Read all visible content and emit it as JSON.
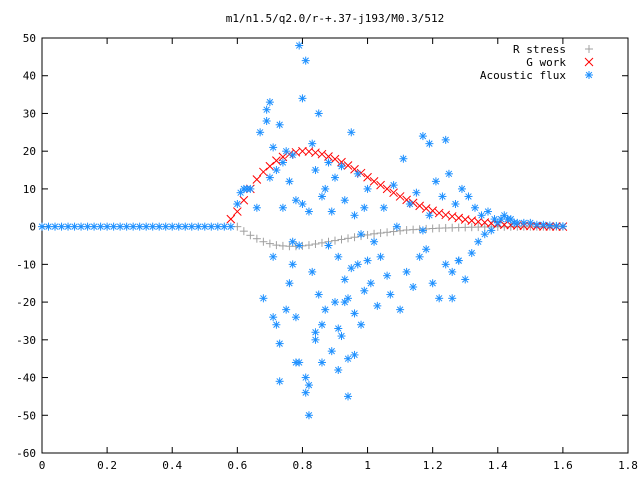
{
  "chart_data": {
    "type": "scatter",
    "title": "m1/n1.5/q2.0/r-+.37-j193/M0.3/512",
    "xlabel": "",
    "ylabel": "",
    "xlim": [
      0,
      1.8
    ],
    "ylim": [
      -60,
      50
    ],
    "x_ticks": [
      0,
      0.2,
      0.4,
      0.6,
      0.8,
      1.0,
      1.2,
      1.4,
      1.6,
      1.8
    ],
    "x_tick_labels": [
      "0",
      "0.2",
      "0.4",
      "0.6",
      "0.8",
      "1",
      "1.2",
      "1.4",
      "1.6",
      "1.8"
    ],
    "y_ticks": [
      -60,
      -50,
      -40,
      -30,
      -20,
      -10,
      0,
      10,
      20,
      30,
      40,
      50
    ],
    "y_tick_labels": [
      "-60",
      "-50",
      "-40",
      "-30",
      "-20",
      "-10",
      "0",
      "10",
      "20",
      "30",
      "40",
      "50"
    ],
    "grid": false,
    "legend_position": "top-right",
    "series": [
      {
        "name": "R stress",
        "marker": "plus",
        "color": "#a0a0a0",
        "x": [
          0.6,
          0.62,
          0.64,
          0.66,
          0.68,
          0.7,
          0.72,
          0.74,
          0.76,
          0.78,
          0.8,
          0.82,
          0.84,
          0.86,
          0.88,
          0.9,
          0.92,
          0.94,
          0.96,
          0.98,
          1.0,
          1.02,
          1.04,
          1.06,
          1.08,
          1.1,
          1.12,
          1.14,
          1.16,
          1.18,
          1.2,
          1.22,
          1.24,
          1.26,
          1.28,
          1.3,
          1.32,
          1.34,
          1.36,
          1.38,
          1.4,
          1.42,
          1.44,
          1.46,
          1.48,
          1.5,
          1.52,
          1.54,
          1.56,
          1.58,
          1.6
        ],
        "y": [
          0,
          -1.2,
          -2.3,
          -3.2,
          -4.0,
          -4.5,
          -4.9,
          -5.1,
          -5.2,
          -5.2,
          -5.1,
          -4.9,
          -4.6,
          -4.3,
          -4.0,
          -3.7,
          -3.4,
          -3.1,
          -2.8,
          -2.5,
          -2.2,
          -1.9,
          -1.7,
          -1.5,
          -1.3,
          -1.1,
          -0.9,
          -0.8,
          -0.7,
          -0.6,
          -0.5,
          -0.4,
          -0.35,
          -0.3,
          -0.25,
          -0.2,
          -0.15,
          -0.12,
          -0.1,
          -0.08,
          -0.06,
          -0.05,
          -0.04,
          -0.03,
          -0.02,
          -0.02,
          -0.01,
          -0.01,
          0,
          0,
          0
        ]
      },
      {
        "name": "G work",
        "marker": "cross",
        "color": "#ff0000",
        "x": [
          0.58,
          0.6,
          0.62,
          0.64,
          0.66,
          0.68,
          0.7,
          0.72,
          0.74,
          0.76,
          0.78,
          0.8,
          0.82,
          0.84,
          0.86,
          0.88,
          0.9,
          0.92,
          0.94,
          0.96,
          0.98,
          1.0,
          1.02,
          1.04,
          1.06,
          1.08,
          1.1,
          1.12,
          1.14,
          1.16,
          1.18,
          1.2,
          1.22,
          1.24,
          1.26,
          1.28,
          1.3,
          1.32,
          1.34,
          1.36,
          1.38,
          1.4,
          1.42,
          1.44,
          1.46,
          1.48,
          1.5,
          1.52,
          1.54,
          1.56,
          1.58,
          1.6
        ],
        "y": [
          2,
          4,
          7,
          10,
          12.5,
          14.5,
          16,
          17.5,
          18.5,
          19.2,
          19.7,
          20,
          19.9,
          19.6,
          19.2,
          18.6,
          17.9,
          17.1,
          16.2,
          15.2,
          14.2,
          13.1,
          12,
          11,
          10,
          9,
          8,
          7.1,
          6.3,
          5.5,
          4.8,
          4.2,
          3.6,
          3.1,
          2.7,
          2.3,
          1.9,
          1.6,
          1.3,
          1.1,
          0.9,
          0.7,
          0.5,
          0.4,
          0.3,
          0.2,
          0.15,
          0.1,
          0.05,
          0.03,
          0.02,
          0
        ]
      },
      {
        "name": "Acoustic flux",
        "marker": "star",
        "color": "#1e90ff",
        "x": [
          0.6,
          0.61,
          0.62,
          0.63,
          0.64,
          0.66,
          0.67,
          0.68,
          0.69,
          0.69,
          0.7,
          0.7,
          0.71,
          0.71,
          0.72,
          0.72,
          0.73,
          0.73,
          0.74,
          0.74,
          0.75,
          0.75,
          0.76,
          0.76,
          0.77,
          0.77,
          0.78,
          0.78,
          0.79,
          0.79,
          0.8,
          0.8,
          0.81,
          0.81,
          0.82,
          0.82,
          0.83,
          0.83,
          0.84,
          0.84,
          0.85,
          0.85,
          0.86,
          0.86,
          0.87,
          0.87,
          0.88,
          0.88,
          0.89,
          0.89,
          0.9,
          0.9,
          0.91,
          0.91,
          0.92,
          0.92,
          0.93,
          0.93,
          0.94,
          0.94,
          0.95,
          0.95,
          0.96,
          0.96,
          0.97,
          0.97,
          0.98,
          0.98,
          0.99,
          0.99,
          1.0,
          1.0,
          1.01,
          1.02,
          1.03,
          1.04,
          1.05,
          1.06,
          1.07,
          1.08,
          1.09,
          1.1,
          1.11,
          1.12,
          1.13,
          1.14,
          1.15,
          1.16,
          1.17,
          1.18,
          1.19,
          1.2,
          1.21,
          1.22,
          1.23,
          1.24,
          1.25,
          1.26,
          1.27,
          1.28,
          1.29,
          1.3,
          1.31,
          1.32,
          1.33,
          1.34,
          1.35,
          1.36,
          1.37,
          1.38,
          1.39,
          1.4,
          1.41,
          1.42,
          1.43,
          1.44,
          1.45,
          1.46,
          1.48,
          1.5,
          1.52,
          1.54,
          1.56,
          1.58,
          1.6,
          0.79,
          0.81,
          0.82,
          0.94,
          0.91,
          0.78,
          0.77,
          0.73,
          0.71,
          0.84,
          0.86,
          0.93,
          0.96,
          1.17,
          1.19,
          1.24,
          1.26,
          1.28
        ],
        "y": [
          6,
          9,
          10,
          10,
          10,
          5,
          25,
          -19,
          28,
          31,
          33,
          13,
          -8,
          21,
          -26,
          15,
          27,
          -31,
          17,
          5,
          -22,
          20,
          12,
          -15,
          -10,
          19,
          -36,
          7,
          48,
          -5,
          6,
          34,
          -40,
          44,
          4,
          -50,
          -12,
          22,
          15,
          -28,
          -18,
          30,
          8,
          -36,
          -22,
          10,
          -5,
          17,
          -33,
          4,
          -20,
          13,
          -8,
          -27,
          16,
          -29,
          -14,
          7,
          -19,
          -35,
          -11,
          25,
          3,
          -23,
          -10,
          14,
          -2,
          -26,
          5,
          -17,
          -9,
          10,
          -15,
          -4,
          -21,
          -8,
          5,
          -13,
          -18,
          11,
          0,
          -22,
          18,
          -12,
          6,
          -16,
          9,
          -8,
          24,
          -6,
          22,
          -15,
          12,
          -19,
          8,
          -10,
          14,
          -12,
          6,
          -9,
          10,
          -14,
          8,
          -7,
          5,
          -4,
          3,
          -2,
          4,
          -1,
          2,
          1,
          2,
          3,
          2,
          2,
          1,
          1,
          1,
          1,
          0.5,
          0.5,
          0.3,
          0.2,
          0.1,
          -36,
          -44,
          -42,
          -45,
          -38,
          -24,
          -4,
          -41,
          -24,
          -30,
          -26,
          -20,
          -34,
          -1,
          3,
          23,
          -19,
          -9
        ]
      },
      {
        "name": "",
        "marker": "star",
        "color": "#1e90ff",
        "x": [
          0.0,
          0.02,
          0.04,
          0.06,
          0.08,
          0.1,
          0.12,
          0.14,
          0.16,
          0.18,
          0.2,
          0.22,
          0.24,
          0.26,
          0.28,
          0.3,
          0.32,
          0.34,
          0.36,
          0.38,
          0.4,
          0.42,
          0.44,
          0.46,
          0.48,
          0.5,
          0.52,
          0.54,
          0.56,
          0.58
        ],
        "y": [
          0,
          0,
          0,
          0,
          0,
          0,
          0,
          0,
          0,
          0,
          0,
          0,
          0,
          0,
          0,
          0,
          0,
          0,
          0,
          0,
          0,
          0,
          0,
          0,
          0,
          0,
          0,
          0,
          0,
          0
        ]
      }
    ]
  }
}
